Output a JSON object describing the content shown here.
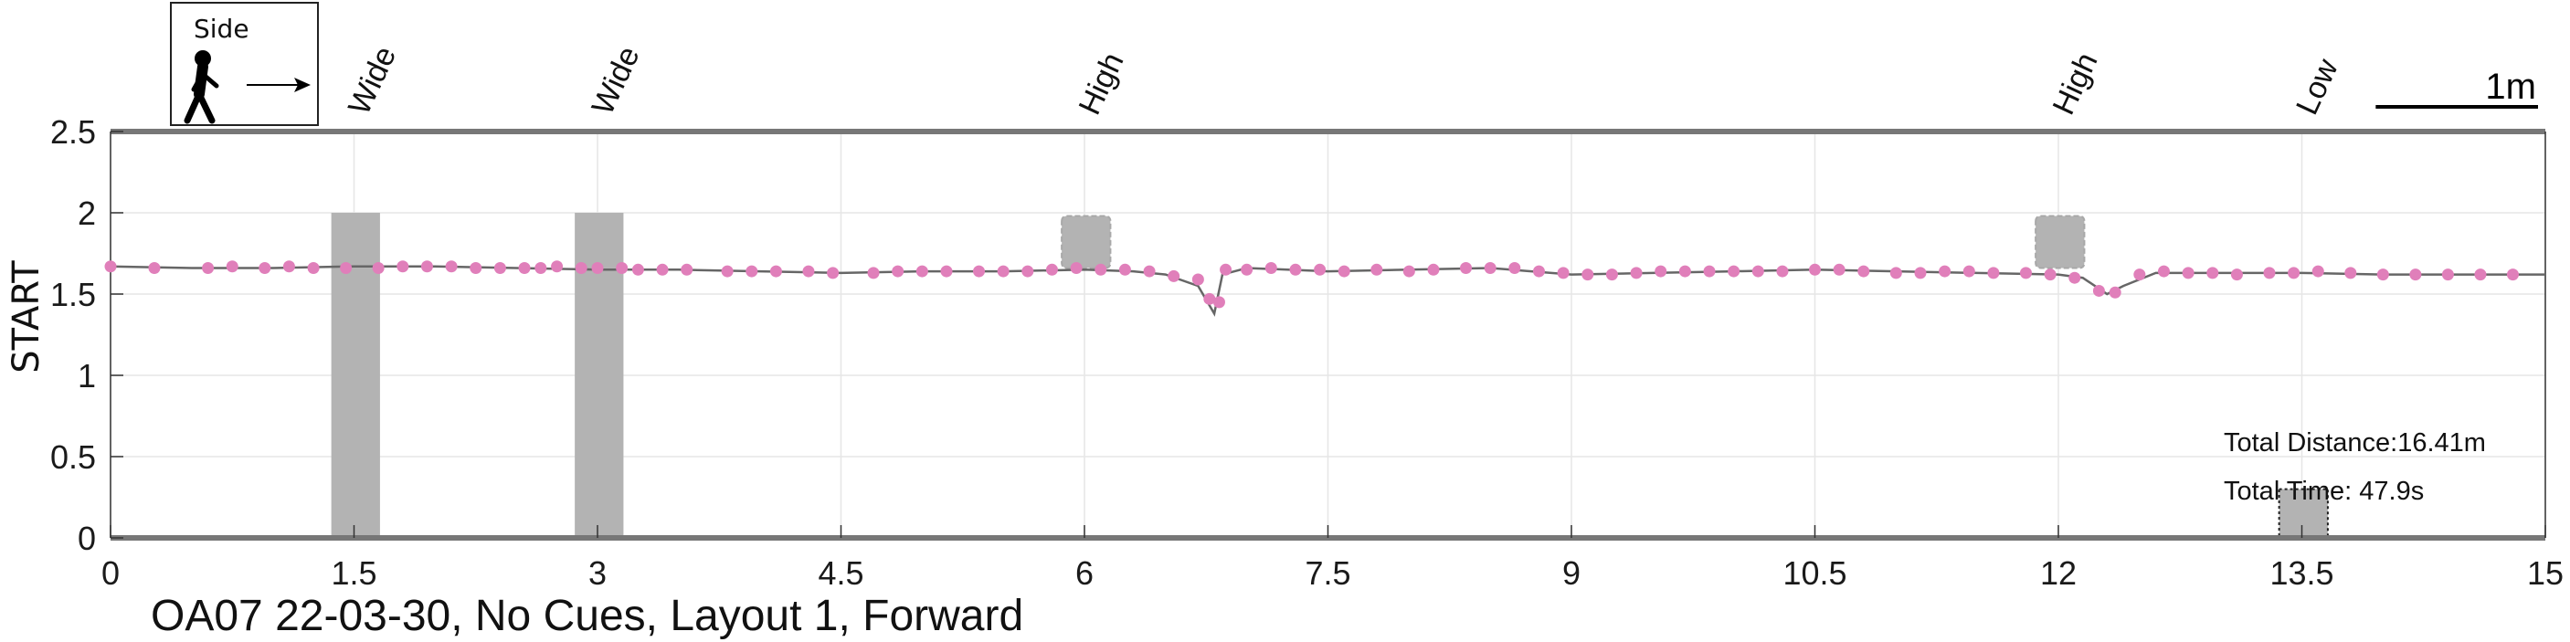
{
  "chart_data": {
    "type": "line",
    "title": "OA07 22-03-30, No Cues, Layout 1, Forward",
    "ylabel": "START",
    "xlabel": "",
    "xlim": [
      0,
      15
    ],
    "ylim": [
      0,
      2.5
    ],
    "x_ticks": [
      0,
      1.5,
      3,
      4.5,
      6,
      7.5,
      9,
      10.5,
      12,
      13.5,
      15
    ],
    "x_tick_labels": [
      "0",
      "1.5",
      "3",
      "4.5",
      "6",
      "7.5",
      "9",
      "10.5",
      "12",
      "13.5",
      "15"
    ],
    "y_ticks": [
      0,
      0.5,
      1,
      1.5,
      2,
      2.5
    ],
    "y_tick_labels": [
      "0",
      "0.5",
      "1",
      "1.5",
      "2",
      "2.5"
    ],
    "grid": true,
    "legend": {
      "title": "Side",
      "icon": "walking-person-icon",
      "arrow": "right-arrow-icon"
    },
    "scale_bar_label": "1m",
    "scale_bar_length": 1,
    "annotations": {
      "total_distance": "Total Distance:16.41m",
      "total_time": "Total Time: 47.9s"
    },
    "obstacles": [
      {
        "label": "Wide",
        "type": "wide",
        "x_start": 1.36,
        "x_end": 1.66,
        "y_bottom": 0,
        "y_top": 2.0
      },
      {
        "label": "Wide",
        "type": "wide",
        "x_start": 2.86,
        "x_end": 3.16,
        "y_bottom": 0,
        "y_top": 2.0
      },
      {
        "label": "High",
        "type": "high",
        "x_start": 5.86,
        "x_end": 6.16,
        "y_bottom": 1.66,
        "y_top": 1.98
      },
      {
        "label": "High",
        "type": "high",
        "x_start": 11.86,
        "x_end": 12.16,
        "y_bottom": 1.66,
        "y_top": 1.98
      },
      {
        "label": "Low",
        "type": "low",
        "x_start": 13.36,
        "x_end": 13.66,
        "y_bottom": 0,
        "y_top": 0.3
      }
    ],
    "series": [
      {
        "line": [
          [
            0.0,
            1.67
          ],
          [
            0.5,
            1.66
          ],
          [
            1.0,
            1.66
          ],
          [
            1.5,
            1.67
          ],
          [
            2.0,
            1.67
          ],
          [
            2.5,
            1.66
          ],
          [
            3.0,
            1.65
          ],
          [
            3.5,
            1.65
          ],
          [
            4.0,
            1.64
          ],
          [
            4.5,
            1.63
          ],
          [
            5.0,
            1.64
          ],
          [
            5.5,
            1.64
          ],
          [
            6.0,
            1.65
          ],
          [
            6.3,
            1.64
          ],
          [
            6.5,
            1.62
          ],
          [
            6.7,
            1.55
          ],
          [
            6.8,
            1.38
          ],
          [
            6.85,
            1.62
          ],
          [
            7.0,
            1.66
          ],
          [
            7.5,
            1.64
          ],
          [
            8.0,
            1.65
          ],
          [
            8.5,
            1.66
          ],
          [
            9.0,
            1.62
          ],
          [
            9.5,
            1.63
          ],
          [
            10.0,
            1.64
          ],
          [
            10.5,
            1.65
          ],
          [
            11.0,
            1.64
          ],
          [
            11.5,
            1.63
          ],
          [
            12.0,
            1.62
          ],
          [
            12.15,
            1.6
          ],
          [
            12.3,
            1.5
          ],
          [
            12.4,
            1.55
          ],
          [
            12.6,
            1.63
          ],
          [
            13.0,
            1.63
          ],
          [
            13.5,
            1.63
          ],
          [
            14.0,
            1.62
          ],
          [
            14.5,
            1.62
          ],
          [
            15.0,
            1.62
          ]
        ],
        "points": [
          [
            0.0,
            1.67
          ],
          [
            0.27,
            1.66
          ],
          [
            0.6,
            1.66
          ],
          [
            0.75,
            1.67
          ],
          [
            0.95,
            1.66
          ],
          [
            1.1,
            1.67
          ],
          [
            1.25,
            1.66
          ],
          [
            1.45,
            1.66
          ],
          [
            1.65,
            1.66
          ],
          [
            1.8,
            1.67
          ],
          [
            1.95,
            1.67
          ],
          [
            2.1,
            1.67
          ],
          [
            2.25,
            1.66
          ],
          [
            2.4,
            1.66
          ],
          [
            2.55,
            1.66
          ],
          [
            2.65,
            1.66
          ],
          [
            2.75,
            1.67
          ],
          [
            2.9,
            1.66
          ],
          [
            3.0,
            1.66
          ],
          [
            3.15,
            1.66
          ],
          [
            3.25,
            1.65
          ],
          [
            3.4,
            1.65
          ],
          [
            3.55,
            1.65
          ],
          [
            3.8,
            1.64
          ],
          [
            3.95,
            1.64
          ],
          [
            4.1,
            1.64
          ],
          [
            4.3,
            1.64
          ],
          [
            4.45,
            1.63
          ],
          [
            4.7,
            1.63
          ],
          [
            4.85,
            1.64
          ],
          [
            5.0,
            1.64
          ],
          [
            5.15,
            1.64
          ],
          [
            5.35,
            1.64
          ],
          [
            5.5,
            1.64
          ],
          [
            5.65,
            1.64
          ],
          [
            5.8,
            1.65
          ],
          [
            5.95,
            1.66
          ],
          [
            6.1,
            1.65
          ],
          [
            6.25,
            1.65
          ],
          [
            6.4,
            1.64
          ],
          [
            6.55,
            1.61
          ],
          [
            6.7,
            1.59
          ],
          [
            6.77,
            1.47
          ],
          [
            6.83,
            1.45
          ],
          [
            6.87,
            1.65
          ],
          [
            7.0,
            1.65
          ],
          [
            7.15,
            1.66
          ],
          [
            7.3,
            1.65
          ],
          [
            7.45,
            1.65
          ],
          [
            7.6,
            1.64
          ],
          [
            7.8,
            1.65
          ],
          [
            8.0,
            1.64
          ],
          [
            8.15,
            1.65
          ],
          [
            8.35,
            1.66
          ],
          [
            8.5,
            1.66
          ],
          [
            8.65,
            1.66
          ],
          [
            8.8,
            1.64
          ],
          [
            8.95,
            1.63
          ],
          [
            9.1,
            1.62
          ],
          [
            9.25,
            1.62
          ],
          [
            9.4,
            1.63
          ],
          [
            9.55,
            1.64
          ],
          [
            9.7,
            1.64
          ],
          [
            9.85,
            1.64
          ],
          [
            10.0,
            1.64
          ],
          [
            10.15,
            1.64
          ],
          [
            10.3,
            1.64
          ],
          [
            10.5,
            1.65
          ],
          [
            10.65,
            1.65
          ],
          [
            10.8,
            1.64
          ],
          [
            11.0,
            1.63
          ],
          [
            11.15,
            1.63
          ],
          [
            11.3,
            1.64
          ],
          [
            11.45,
            1.64
          ],
          [
            11.6,
            1.63
          ],
          [
            11.8,
            1.63
          ],
          [
            11.95,
            1.62
          ],
          [
            12.1,
            1.6
          ],
          [
            12.25,
            1.52
          ],
          [
            12.35,
            1.51
          ],
          [
            12.5,
            1.62
          ],
          [
            12.65,
            1.64
          ],
          [
            12.8,
            1.63
          ],
          [
            12.95,
            1.63
          ],
          [
            13.1,
            1.62
          ],
          [
            13.3,
            1.63
          ],
          [
            13.45,
            1.63
          ],
          [
            13.6,
            1.64
          ],
          [
            13.8,
            1.63
          ],
          [
            14.0,
            1.62
          ],
          [
            14.2,
            1.62
          ],
          [
            14.4,
            1.62
          ],
          [
            14.6,
            1.62
          ],
          [
            14.8,
            1.62
          ]
        ]
      }
    ]
  }
}
